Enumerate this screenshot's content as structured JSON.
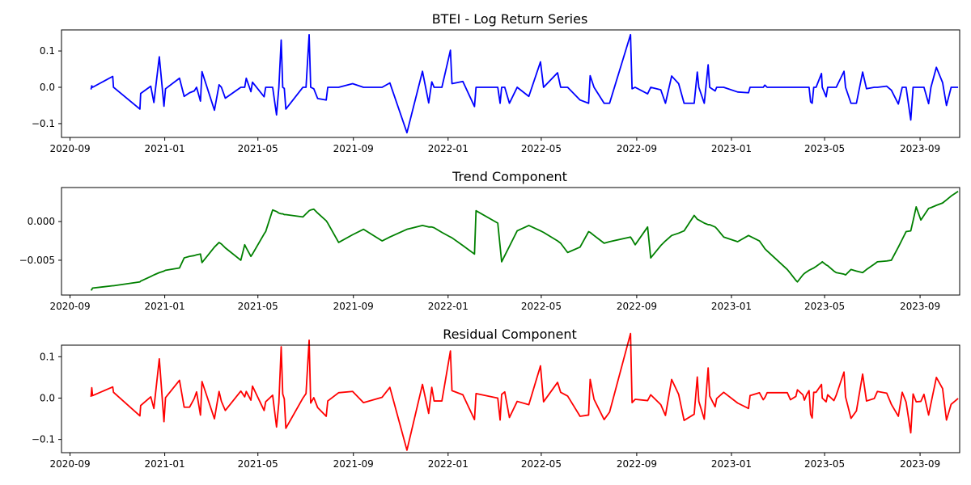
{
  "chart_data": [
    {
      "type": "line",
      "title": "BTEI - Log Return Series",
      "xlabel": "",
      "ylabel": "",
      "x_range": [
        "2020-08-21",
        "2023-10-22"
      ],
      "ylim": [
        -0.138,
        0.158
      ],
      "grid": false,
      "color": "#0000ff",
      "x_ticks": [
        "2020-09",
        "2021-01",
        "2021-05",
        "2021-09",
        "2022-01",
        "2022-05",
        "2022-09",
        "2023-01",
        "2023-05",
        "2023-09"
      ],
      "y_ticks": [
        {
          "value": -0.1,
          "label": "−0.1"
        },
        {
          "value": 0.0,
          "label": "0.0"
        },
        {
          "value": 0.1,
          "label": "0.1"
        }
      ],
      "points": [
        [
          "2020-09-28",
          -0.006
        ],
        [
          "2020-09-29",
          0.004
        ],
        [
          "2020-09-30",
          0.0
        ],
        [
          "2020-10-26",
          0.03
        ],
        [
          "2020-10-27",
          0.0
        ],
        [
          "2020-11-30",
          -0.06
        ],
        [
          "2020-12-01",
          -0.017
        ],
        [
          "2020-12-14",
          0.003
        ],
        [
          "2020-12-18",
          -0.042
        ],
        [
          "2020-12-25",
          0.084
        ],
        [
          "2020-12-31",
          -0.052
        ],
        [
          "2021-01-02",
          -0.004
        ],
        [
          "2021-01-20",
          0.025
        ],
        [
          "2021-01-26",
          -0.025
        ],
        [
          "2021-02-02",
          -0.015
        ],
        [
          "2021-02-08",
          -0.01
        ],
        [
          "2021-02-11",
          0.0
        ],
        [
          "2021-02-16",
          -0.038
        ],
        [
          "2021-02-18",
          0.043
        ],
        [
          "2021-03-06",
          -0.063
        ],
        [
          "2021-03-12",
          0.007
        ],
        [
          "2021-03-15",
          0.0
        ],
        [
          "2021-03-20",
          -0.03
        ],
        [
          "2021-04-09",
          0.0
        ],
        [
          "2021-04-14",
          0.0
        ],
        [
          "2021-04-16",
          0.025
        ],
        [
          "2021-04-22",
          -0.012
        ],
        [
          "2021-04-24",
          0.014
        ],
        [
          "2021-05-09",
          -0.026
        ],
        [
          "2021-05-11",
          0.0
        ],
        [
          "2021-05-20",
          0.0
        ],
        [
          "2021-05-25",
          -0.076
        ],
        [
          "2021-05-28",
          0.0
        ],
        [
          "2021-05-31",
          0.13
        ],
        [
          "2021-06-02",
          0.0
        ],
        [
          "2021-06-04",
          -0.003
        ],
        [
          "2021-06-06",
          -0.06
        ],
        [
          "2021-06-28",
          0.0
        ],
        [
          "2021-07-02",
          0.0
        ],
        [
          "2021-07-06",
          0.145
        ],
        [
          "2021-07-08",
          0.0
        ],
        [
          "2021-07-12",
          -0.004
        ],
        [
          "2021-07-17",
          -0.031
        ],
        [
          "2021-07-28",
          -0.035
        ],
        [
          "2021-07-30",
          0.0
        ],
        [
          "2021-08-13",
          0.0
        ],
        [
          "2021-08-31",
          0.01
        ],
        [
          "2021-09-14",
          0.0
        ],
        [
          "2021-10-08",
          0.0
        ],
        [
          "2021-10-18",
          0.012
        ],
        [
          "2021-11-09",
          -0.125
        ],
        [
          "2021-11-29",
          0.044
        ],
        [
          "2021-12-07",
          -0.043
        ],
        [
          "2021-12-11",
          0.015
        ],
        [
          "2021-12-14",
          0.0
        ],
        [
          "2021-12-24",
          0.0
        ],
        [
          "2022-01-04",
          0.102
        ],
        [
          "2022-01-06",
          0.01
        ],
        [
          "2022-01-20",
          0.016
        ],
        [
          "2022-02-04",
          -0.053
        ],
        [
          "2022-02-06",
          0.0
        ],
        [
          "2022-03-06",
          0.0
        ],
        [
          "2022-03-09",
          -0.044
        ],
        [
          "2022-03-11",
          0.0
        ],
        [
          "2022-03-15",
          0.0
        ],
        [
          "2022-03-21",
          -0.044
        ],
        [
          "2022-03-31",
          0.0
        ],
        [
          "2022-04-15",
          -0.025
        ],
        [
          "2022-04-30",
          0.07
        ],
        [
          "2022-05-04",
          0.0
        ],
        [
          "2022-05-22",
          0.04
        ],
        [
          "2022-05-26",
          0.0
        ],
        [
          "2022-06-04",
          0.0
        ],
        [
          "2022-06-20",
          -0.035
        ],
        [
          "2022-07-01",
          -0.044
        ],
        [
          "2022-07-03",
          0.032
        ],
        [
          "2022-07-08",
          0.0
        ],
        [
          "2022-07-21",
          -0.044
        ],
        [
          "2022-07-28",
          -0.044
        ],
        [
          "2022-08-24",
          0.145
        ],
        [
          "2022-08-26",
          -0.004
        ],
        [
          "2022-08-30",
          0.0
        ],
        [
          "2022-09-15",
          -0.018
        ],
        [
          "2022-09-19",
          0.0
        ],
        [
          "2022-10-02",
          -0.007
        ],
        [
          "2022-10-08",
          -0.044
        ],
        [
          "2022-10-16",
          0.031
        ],
        [
          "2022-10-25",
          0.01
        ],
        [
          "2022-11-01",
          -0.044
        ],
        [
          "2022-11-14",
          -0.044
        ],
        [
          "2022-11-18",
          0.042
        ],
        [
          "2022-11-20",
          0.0
        ],
        [
          "2022-11-27",
          -0.044
        ],
        [
          "2022-12-02",
          0.062
        ],
        [
          "2022-12-04",
          0.0
        ],
        [
          "2022-12-11",
          -0.01
        ],
        [
          "2022-12-13",
          0.0
        ],
        [
          "2022-12-22",
          0.0
        ],
        [
          "2023-01-09",
          -0.013
        ],
        [
          "2023-01-23",
          -0.015
        ],
        [
          "2023-01-25",
          0.0
        ],
        [
          "2023-02-06",
          0.0
        ],
        [
          "2023-02-11",
          0.0
        ],
        [
          "2023-02-13",
          0.006
        ],
        [
          "2023-02-16",
          0.0
        ],
        [
          "2023-03-14",
          0.0
        ],
        [
          "2023-03-18",
          0.0
        ],
        [
          "2023-03-25",
          0.0
        ],
        [
          "2023-03-27",
          0.0
        ],
        [
          "2023-04-03",
          0.0
        ],
        [
          "2023-04-05",
          0.0
        ],
        [
          "2023-04-08",
          0.0
        ],
        [
          "2023-04-11",
          0.0
        ],
        [
          "2023-04-13",
          -0.04
        ],
        [
          "2023-04-15",
          -0.044
        ],
        [
          "2023-04-17",
          0.0
        ],
        [
          "2023-04-20",
          0.0
        ],
        [
          "2023-04-27",
          0.038
        ],
        [
          "2023-04-28",
          0.0
        ],
        [
          "2023-05-03",
          -0.026
        ],
        [
          "2023-05-05",
          0.0
        ],
        [
          "2023-05-13",
          0.0
        ],
        [
          "2023-05-16",
          0.0
        ],
        [
          "2023-05-26",
          0.044
        ],
        [
          "2023-05-28",
          0.0
        ],
        [
          "2023-06-04",
          -0.044
        ],
        [
          "2023-06-11",
          -0.044
        ],
        [
          "2023-06-19",
          0.042
        ],
        [
          "2023-06-24",
          -0.004
        ],
        [
          "2023-07-04",
          0.0
        ],
        [
          "2023-07-08",
          0.0
        ],
        [
          "2023-07-20",
          0.003
        ],
        [
          "2023-07-26",
          -0.008
        ],
        [
          "2023-08-04",
          -0.046
        ],
        [
          "2023-08-09",
          0.0
        ],
        [
          "2023-08-12",
          0.0
        ],
        [
          "2023-08-14",
          0.0
        ],
        [
          "2023-08-20",
          -0.09
        ],
        [
          "2023-08-23",
          0.0
        ],
        [
          "2023-08-27",
          0.0
        ],
        [
          "2023-09-02",
          0.0
        ],
        [
          "2023-09-06",
          0.0
        ],
        [
          "2023-09-12",
          -0.045
        ],
        [
          "2023-09-15",
          0.0
        ],
        [
          "2023-09-22",
          0.055
        ],
        [
          "2023-09-30",
          0.013
        ],
        [
          "2023-10-05",
          -0.05
        ],
        [
          "2023-10-11",
          0.0
        ],
        [
          "2023-10-20",
          0.0
        ]
      ]
    },
    {
      "type": "line",
      "title": "Trend Component",
      "xlabel": "",
      "ylabel": "",
      "x_range": [
        "2020-08-21",
        "2023-10-22"
      ],
      "ylim": [
        -0.0095,
        0.0044
      ],
      "grid": false,
      "color": "#008000",
      "x_ticks": [
        "2020-09",
        "2021-01",
        "2021-05",
        "2021-09",
        "2022-01",
        "2022-05",
        "2022-09",
        "2023-01",
        "2023-05",
        "2023-09"
      ],
      "y_ticks": [
        {
          "value": -0.005,
          "label": "−0.005"
        },
        {
          "value": 0.0,
          "label": "0.000"
        }
      ],
      "points": []
    },
    {
      "type": "line",
      "title": "Residual Component",
      "xlabel": "",
      "ylabel": "",
      "x_range": [
        "2020-08-21",
        "2023-10-22"
      ],
      "ylim": [
        -0.132,
        0.128
      ],
      "grid": false,
      "color": "#ff0000",
      "x_ticks": [
        "2020-09",
        "2021-01",
        "2021-05",
        "2021-09",
        "2022-01",
        "2022-05",
        "2022-09",
        "2023-01",
        "2023-05",
        "2023-09"
      ],
      "y_ticks": [
        {
          "value": -0.1,
          "label": "−0.1"
        },
        {
          "value": 0.0,
          "label": "0.0"
        },
        {
          "value": 0.1,
          "label": "0.1"
        }
      ],
      "points": []
    }
  ]
}
